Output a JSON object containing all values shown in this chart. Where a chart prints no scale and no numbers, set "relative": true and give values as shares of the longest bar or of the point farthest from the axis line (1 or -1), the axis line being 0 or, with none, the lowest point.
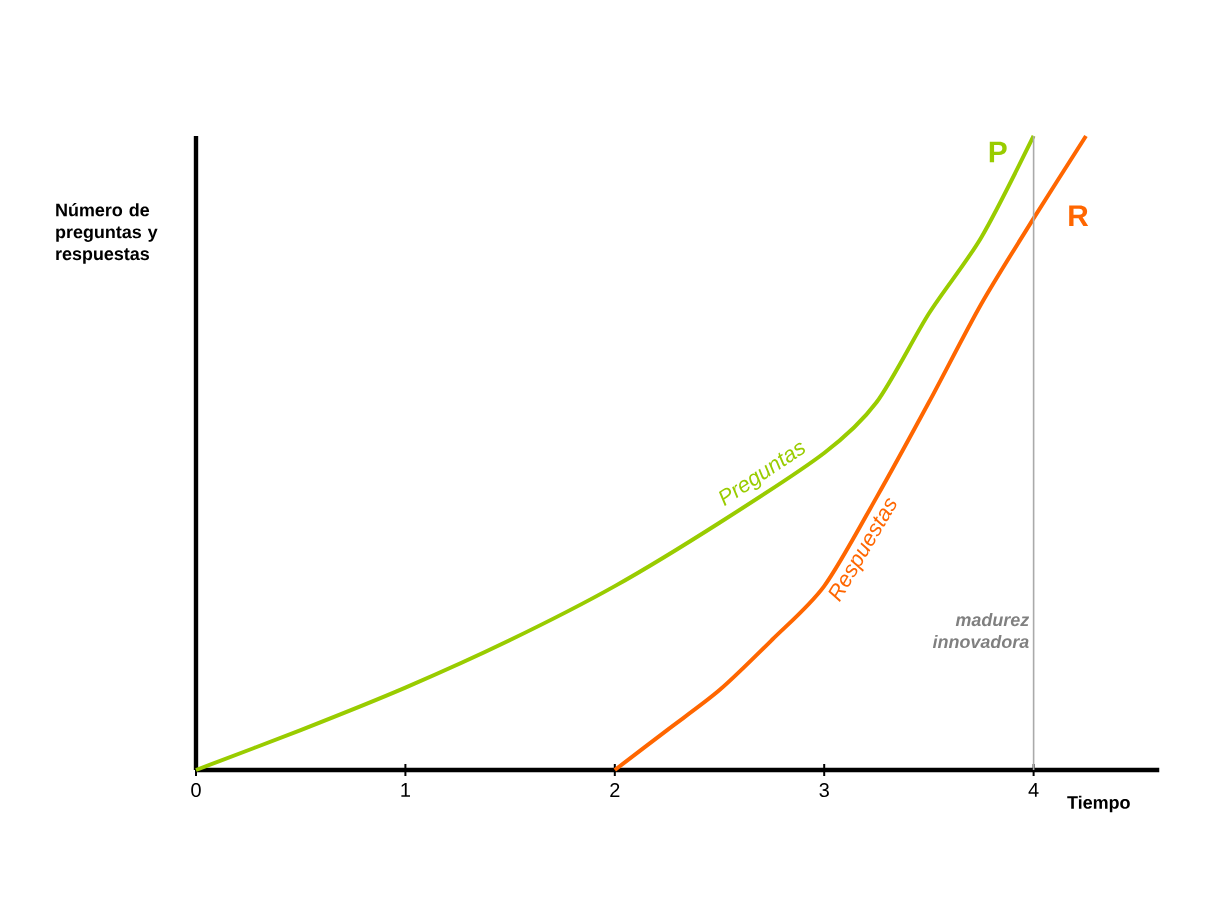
{
  "chart_data": {
    "type": "line",
    "relative": true,
    "xlabel": "Tiempo",
    "ylabel": "Número de preguntas y respuestas",
    "xlim": [
      0,
      4.6
    ],
    "xticks": [
      0,
      1,
      2,
      3,
      4
    ],
    "tick_labels": "x",
    "marker": "none",
    "line_style": "solid",
    "series": [
      {
        "name": "Preguntas",
        "color": "#99cc00",
        "x": [
          0,
          0.5,
          1,
          1.5,
          2,
          2.5,
          3,
          3.25,
          3.5,
          3.75,
          4
        ],
        "values": [
          0,
          0.063,
          0.13,
          0.205,
          0.29,
          0.39,
          0.5,
          0.58,
          0.72,
          0.84,
          1.0
        ]
      },
      {
        "name": "Respuestas",
        "color": "#ff6600",
        "x": [
          2,
          2.25,
          2.5,
          2.75,
          3,
          3.25,
          3.5,
          3.75,
          4,
          4.25
        ],
        "values": [
          0,
          0.063,
          0.126,
          0.205,
          0.29,
          0.43,
          0.58,
          0.735,
          0.87,
          1.0
        ]
      }
    ],
    "annotations": [
      "P",
      "R"
    ],
    "ref_lines": [
      {
        "axis": "x",
        "value": 4,
        "label": "madurez innovadora",
        "color": "#aaaaaa"
      }
    ]
  }
}
